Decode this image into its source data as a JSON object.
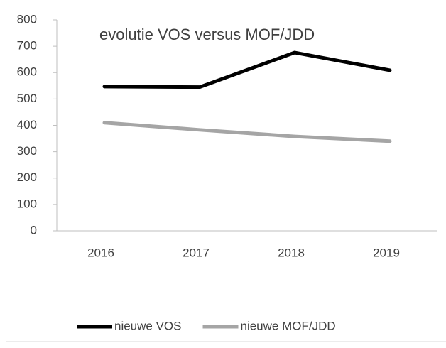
{
  "chart_data": {
    "type": "line",
    "title": "evolutie VOS versus MOF/JDD",
    "categories": [
      "2016",
      "2017",
      "2018",
      "2019"
    ],
    "series": [
      {
        "name": "nieuwe VOS",
        "color": "#000000",
        "values": [
          547,
          545,
          676,
          609
        ]
      },
      {
        "name": "nieuwe MOF/JDD",
        "color": "#a5a5a5",
        "values": [
          410,
          383,
          358,
          340
        ]
      }
    ],
    "ylim": [
      0,
      800
    ],
    "yticks": [
      0,
      100,
      200,
      300,
      400,
      500,
      600,
      700,
      800
    ],
    "grid": false,
    "legend": "bottom"
  }
}
